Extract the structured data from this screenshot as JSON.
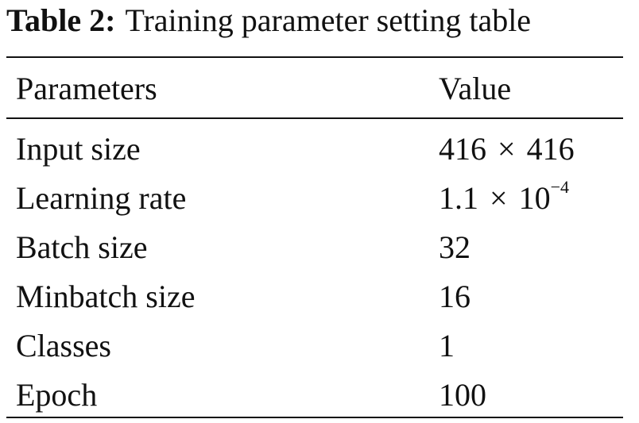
{
  "caption": {
    "label": "Table 2:",
    "text": "Training parameter setting table"
  },
  "table": {
    "headers": {
      "parameter": "Parameters",
      "value": "Value"
    },
    "rows": [
      {
        "parameter": "Input size",
        "value_base": "416",
        "value_op": "×",
        "value_rest": "416",
        "value_exp": ""
      },
      {
        "parameter": "Learning rate",
        "value_base": "1.1",
        "value_op": "×",
        "value_rest": "10",
        "value_exp": "−4"
      },
      {
        "parameter": "Batch size",
        "value_base": "32",
        "value_op": "",
        "value_rest": "",
        "value_exp": ""
      },
      {
        "parameter": "Minbatch size",
        "value_base": "16",
        "value_op": "",
        "value_rest": "",
        "value_exp": ""
      },
      {
        "parameter": "Classes",
        "value_base": "1",
        "value_op": "",
        "value_rest": "",
        "value_exp": ""
      },
      {
        "parameter": "Epoch",
        "value_base": "100",
        "value_op": "",
        "value_rest": "",
        "value_exp": ""
      }
    ]
  }
}
